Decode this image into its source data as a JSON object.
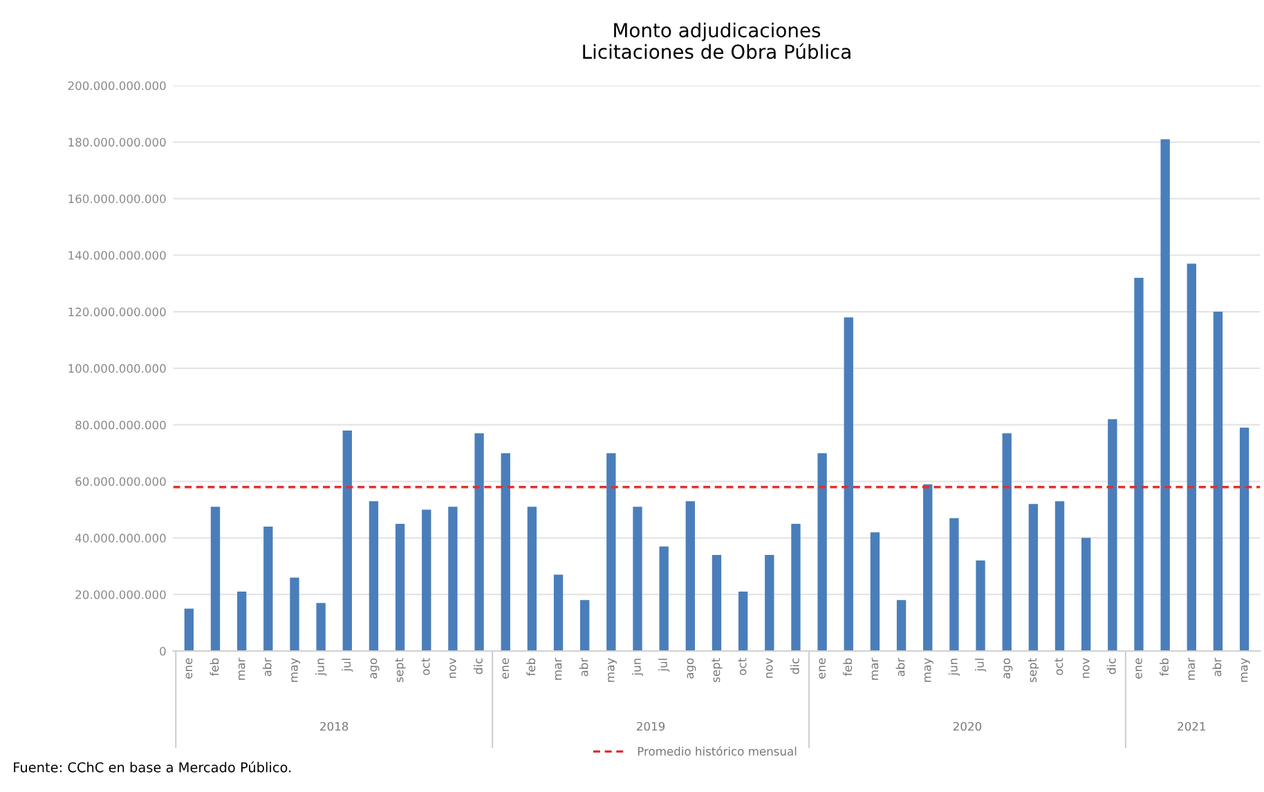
{
  "chart_data": {
    "type": "bar",
    "title": "Monto adjudicaciones\nLicitaciones de Obra Pública",
    "categories": [
      "ene",
      "feb",
      "mar",
      "abr",
      "may",
      "jun",
      "jul",
      "ago",
      "sept",
      "oct",
      "nov",
      "dic",
      "ene",
      "feb",
      "mar",
      "abr",
      "may",
      "jun",
      "jul",
      "ago",
      "sept",
      "oct",
      "nov",
      "dic",
      "ene",
      "feb",
      "mar",
      "abr",
      "may",
      "jun",
      "jul",
      "ago",
      "sept",
      "oct",
      "nov",
      "dic",
      "ene",
      "feb",
      "mar",
      "abr",
      "may"
    ],
    "values": [
      15000000000,
      51000000000,
      21000000000,
      44000000000,
      26000000000,
      17000000000,
      78000000000,
      53000000000,
      45000000000,
      50000000000,
      51000000000,
      77000000000,
      70000000000,
      51000000000,
      27000000000,
      18000000000,
      70000000000,
      51000000000,
      37000000000,
      53000000000,
      34000000000,
      21000000000,
      34000000000,
      45000000000,
      70000000000,
      118000000000,
      42000000000,
      18000000000,
      59000000000,
      47000000000,
      32000000000,
      77000000000,
      52000000000,
      53000000000,
      40000000000,
      82000000000,
      132000000000,
      181000000000,
      137000000000,
      120000000000,
      79000000000
    ],
    "color": "#4a7ebb",
    "ylim": [
      0,
      200000000000
    ],
    "yticks": [
      0,
      {
        "value": 20000000000,
        "label": "20.000.000.000"
      },
      {
        "value": 40000000000,
        "label": "40.000.000.000"
      },
      {
        "value": 60000000000,
        "label": "60.000.000.000"
      },
      {
        "value": 80000000000,
        "label": "80.000.000.000"
      },
      {
        "value": 100000000000,
        "label": "100.000.000.000"
      },
      {
        "value": 120000000000,
        "label": "120.000.000.000"
      },
      {
        "value": 140000000000,
        "label": "140.000.000.000"
      },
      {
        "value": 160000000000,
        "label": "160.000.000.000"
      },
      {
        "value": 180000000000,
        "label": "180.000.000.000"
      },
      {
        "value": 200000000000,
        "label": "200.000.000.000"
      }
    ],
    "grid": "y",
    "ref_lines": [
      {
        "axis": "y",
        "value": 58000000000,
        "label": "Promedio histórico mensual",
        "color": "#e03030",
        "line_style": "dashed"
      }
    ],
    "legend": "bottom",
    "annotations": [
      "2018",
      "2019",
      "2020",
      "2021",
      "Fuente: CChC en base a Mercado Público."
    ]
  }
}
